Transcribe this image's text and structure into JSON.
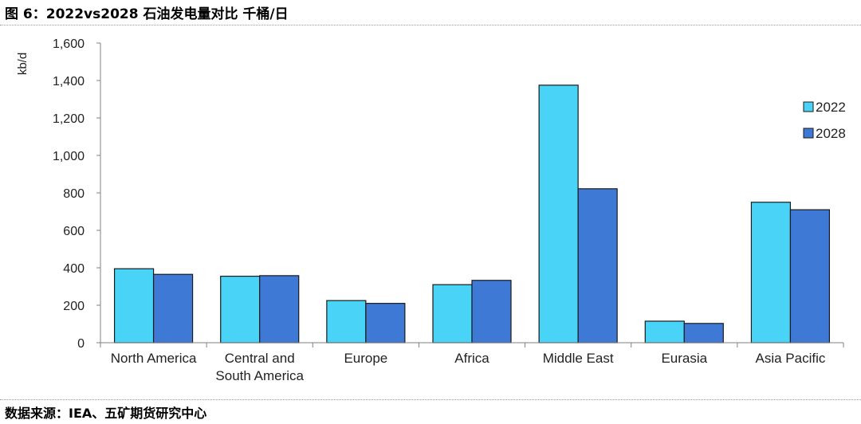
{
  "page": {
    "title": "图 6：2022vs2028 石油发电量对比 千桶/日",
    "source": "数据来源：IEA、五矿期货研究中心"
  },
  "chart_data": {
    "type": "bar",
    "title": "",
    "ylabel": "kb/d",
    "xlabel": "",
    "ylim": [
      0,
      1600
    ],
    "yticks": [
      0,
      200,
      400,
      600,
      800,
      1000,
      1200,
      1400,
      1600
    ],
    "ytick_labels": [
      "0",
      "200",
      "400",
      "600",
      "800",
      "1,000",
      "1,200",
      "1,400",
      "1,600"
    ],
    "categories": [
      "North America",
      "Central and South America",
      "Europe",
      "Africa",
      "Middle East",
      "Eurasia",
      "Asia Pacific"
    ],
    "category_lines": [
      [
        "North America"
      ],
      [
        "Central and",
        "South America"
      ],
      [
        "Europe"
      ],
      [
        "Africa"
      ],
      [
        "Middle East"
      ],
      [
        "Eurasia"
      ],
      [
        "Asia Pacific"
      ]
    ],
    "series": [
      {
        "name": "2022",
        "color": "#49d3f7",
        "values": [
          395,
          355,
          225,
          310,
          1375,
          115,
          750
        ]
      },
      {
        "name": "2028",
        "color": "#3f79d6",
        "values": [
          365,
          358,
          210,
          333,
          822,
          103,
          710
        ]
      }
    ],
    "legend_position": "right",
    "grid": false
  }
}
